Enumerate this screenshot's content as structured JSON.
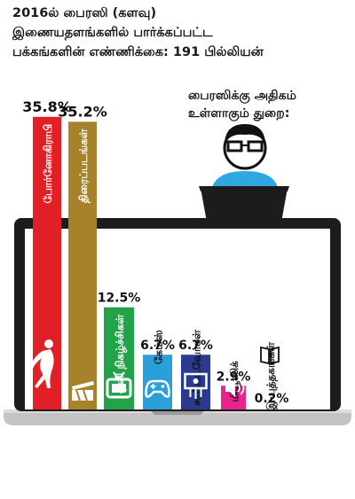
{
  "header": {
    "line1": "2016ல் பைரஸி (களவு)",
    "line2": "இணையதளங்களில் பார்க்கப்பட்ட",
    "line3": "பக்கங்களின் எண்ணிக்கை: 191 பில்லியன்"
  },
  "side_title": {
    "line1": "பைரஸிக்கு அதிகம்",
    "line2": "உள்ளாகும் துறை:"
  },
  "colors": {
    "red": "#e11f26",
    "gold": "#a6832a",
    "green": "#22a24a",
    "blue": "#2b9fd9",
    "navy": "#2a3a8f",
    "pink": "#e7248a",
    "laptop": "#1c1c1c",
    "base": "#bdbdbd"
  },
  "chart_data": {
    "type": "bar",
    "title": "பக்கங்களின் எண்ணிக்கை: 191 பில்லியன்",
    "categories": [
      "போர்னோகிராபி",
      "திரைப்படங்கள்",
      "ஒளி நிகழ்ச்சிகள்",
      "கேம்ஸ்",
      "சாஃப்ட்வேர்கள்",
      "மியூஸிக்",
      "இ-புத்தகங்கள்"
    ],
    "values": [
      35.8,
      35.2,
      12.5,
      6.7,
      6.7,
      2.9,
      0.2
    ],
    "value_labels": [
      "35.8%",
      "35.2%",
      "12.5%",
      "6.7%",
      "6.7%",
      "2.9%",
      "0.2%"
    ],
    "icons": [
      "silhouette-icon",
      "clapperboard-icon",
      "tv-icon",
      "gamepad-icon",
      "circuit-icon",
      "speaker-icon",
      "book-icon"
    ],
    "bar_colors": [
      "#e11f26",
      "#a6832a",
      "#22a24a",
      "#2b9fd9",
      "#2a3a8f",
      "#e7248a",
      "#ffffff"
    ],
    "ylim": [
      0,
      36
    ]
  }
}
